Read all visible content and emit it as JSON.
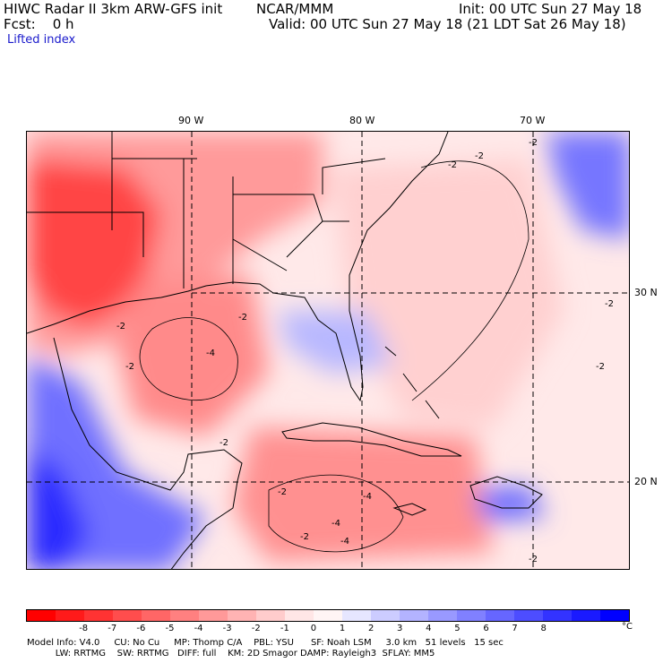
{
  "header": {
    "title": "HIWC Radar II 3km ARW-GFS init",
    "org": "NCAR/MMM",
    "init": "Init: 00 UTC Sun 27 May 18",
    "fcst": "Fcst:    0 h",
    "valid": "Valid: 00 UTC Sun 27 May 18 (21 LDT Sat 26 May 18)",
    "field": "Lifted index"
  },
  "map": {
    "lon_labels": [
      "90 W",
      "80 W",
      "70 W"
    ],
    "lat_labels": [
      "30 N",
      "20 N"
    ],
    "contour_labels": [
      "-2",
      "-4"
    ],
    "colors": {
      "strong_neg": "#ff2a2a",
      "neg": "#ff7a7a",
      "weak_neg": "#ffc6c6",
      "neutral": "#fff0f0",
      "weak_pos": "#c6c6ff",
      "pos": "#7a7aff",
      "strong_pos": "#2a2aff",
      "land_outline": "#000000",
      "minor_outline": "#8b0000"
    }
  },
  "colorbar": {
    "colors": [
      "#ff0000",
      "#ff1a1a",
      "#ff3333",
      "#ff4d4d",
      "#ff6666",
      "#ff8080",
      "#ff9999",
      "#ffb3b3",
      "#ffcccc",
      "#ffe6e6",
      "#fff5f5",
      "#e6e6ff",
      "#ccccff",
      "#b3b3ff",
      "#9999ff",
      "#8080ff",
      "#6666ff",
      "#4d4dff",
      "#3333ff",
      "#1a1aff",
      "#0000ff"
    ],
    "labels": [
      "-8",
      "-7",
      "-6",
      "-5",
      "-4",
      "-3",
      "-2",
      "-1",
      "0",
      "1",
      "2",
      "3",
      "4",
      "5",
      "6",
      "7",
      "8"
    ],
    "unit": "°C"
  },
  "footer": {
    "line1": "Model Info: V4.0     CU: No Cu     MP: Thomp C/A    PBL: YSU      SF: Noah LSM     3.0 km   51 levels   15 sec",
    "line2": "          LW: RRTMG    SW: RRTMG   DIFF: full    KM: 2D Smagor DAMP: Rayleigh3  SFLAY: MM5"
  }
}
